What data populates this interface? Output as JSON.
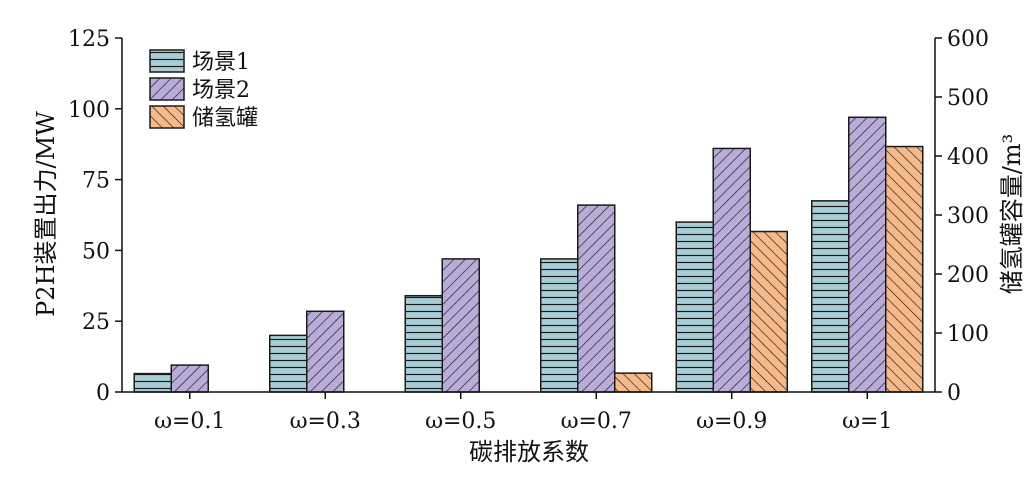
{
  "chart_data": {
    "type": "bar",
    "categories": [
      "ω=0.1",
      "ω=0.3",
      "ω=0.5",
      "ω=0.7",
      "ω=0.9",
      "ω=1"
    ],
    "series": [
      {
        "name": "场景1",
        "axis": "left",
        "values": [
          6.5,
          20,
          34,
          47,
          60,
          67.5
        ]
      },
      {
        "name": "场景2",
        "axis": "left",
        "values": [
          9.5,
          28.5,
          47,
          66,
          86,
          97
        ]
      },
      {
        "name": "储氢罐",
        "axis": "right",
        "values": [
          0,
          0,
          0,
          32,
          272,
          416
        ]
      }
    ],
    "xlabel": "碳排放系数",
    "ylabel": "P2H装置出力/MW",
    "y2label": "储氢罐容量/m³",
    "ylim": [
      0,
      125
    ],
    "y2lim": [
      0,
      600
    ],
    "yticks": [
      0,
      25,
      50,
      75,
      100,
      125
    ],
    "y2ticks": [
      0,
      100,
      200,
      300,
      400,
      500,
      600
    ],
    "legend_position": "top-left",
    "grid": false,
    "colors": {
      "场景1": "#a8cdd7",
      "场景2": "#b9acd9",
      "储氢罐": "#f5b98a",
      "stroke": "#1a1a1a"
    }
  }
}
